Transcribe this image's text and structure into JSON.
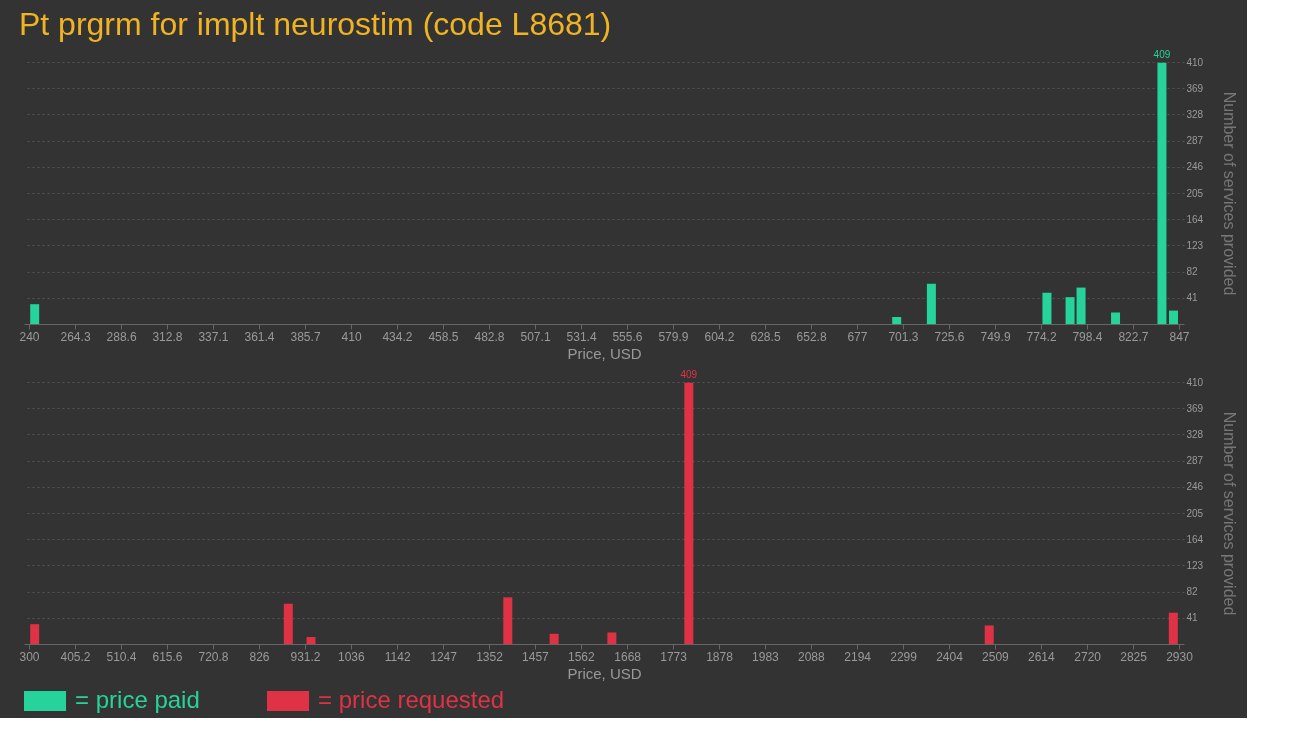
{
  "chart_data": [
    {
      "type": "bar",
      "title": "Pt prgrm for implt neurostim (code L8681)",
      "xlabel": "Price, USD",
      "ylabel": "Number of services provided",
      "x": [
        243,
        698,
        716.3,
        777.3,
        789.5,
        795.3,
        813.5,
        838,
        844.1
      ],
      "series": [
        {
          "name": "= price paid",
          "color": "#26d39a",
          "values": [
            31,
            11,
            63,
            49,
            42,
            57,
            18,
            409,
            21
          ],
          "value_labels": [
            null,
            null,
            null,
            null,
            null,
            null,
            null,
            "409",
            null
          ]
        }
      ],
      "xlim": [
        240,
        847
      ],
      "xticks": [
        240,
        264.3,
        288.6,
        312.8,
        337.1,
        361.4,
        385.7,
        410,
        434.2,
        458.5,
        482.8,
        507.1,
        531.4,
        555.6,
        579.9,
        604.2,
        628.5,
        652.8,
        677,
        701.3,
        725.6,
        749.9,
        774.2,
        798.4,
        822.7,
        847
      ],
      "ylim": [
        0,
        410
      ],
      "yticks": [
        41,
        82,
        123,
        164,
        205,
        246,
        287,
        328,
        369,
        410
      ],
      "grid": "y",
      "legend": "bottom"
    },
    {
      "type": "bar",
      "xlabel": "Price, USD",
      "ylabel": "Number of services provided",
      "x": [
        313,
        893,
        945,
        1395,
        1501,
        1633,
        1809,
        2496,
        2917
      ],
      "series": [
        {
          "name": "= price requested",
          "color": "#e03245",
          "values": [
            31,
            63,
            11,
            73,
            16,
            18,
            409,
            29,
            49
          ],
          "value_labels": [
            null,
            null,
            null,
            null,
            null,
            null,
            "409",
            null,
            null
          ]
        }
      ],
      "xlim": [
        300,
        2930
      ],
      "xticks": [
        300,
        405.2,
        510.4,
        615.6,
        720.8,
        826,
        931.2,
        1036,
        1142,
        1247,
        1352,
        1457,
        1562,
        1668,
        1773,
        1878,
        1983,
        2088,
        2194,
        2299,
        2404,
        2509,
        2614,
        2720,
        2825,
        2930
      ],
      "ylim": [
        0,
        410
      ],
      "yticks": [
        41,
        82,
        123,
        164,
        205,
        246,
        287,
        328,
        369,
        410
      ],
      "grid": "y",
      "legend": "bottom"
    }
  ]
}
